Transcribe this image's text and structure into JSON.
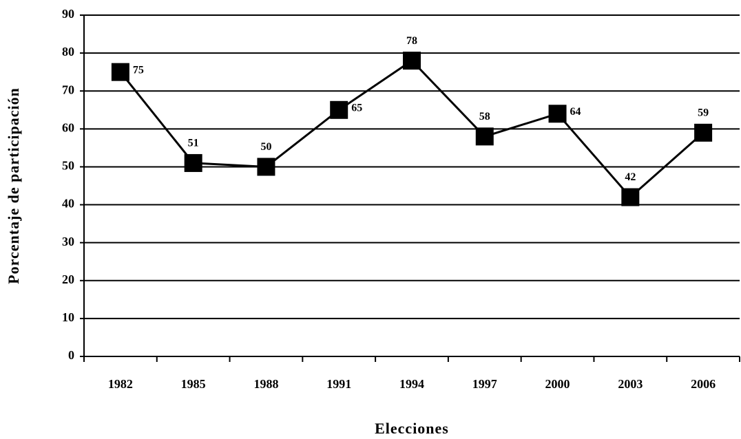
{
  "chart_data": {
    "type": "line",
    "x_label": "Elecciones",
    "y_label": "Porcentaje de participación",
    "categories": [
      "1982",
      "1985",
      "1988",
      "1991",
      "1994",
      "1997",
      "2000",
      "2003",
      "2006"
    ],
    "values": [
      75,
      51,
      50,
      65,
      78,
      58,
      64,
      42,
      59
    ],
    "color": "#000000",
    "ylim": [
      0,
      90
    ],
    "yticks": [
      0,
      10,
      20,
      30,
      40,
      50,
      60,
      70,
      80,
      90
    ],
    "grid": true
  }
}
